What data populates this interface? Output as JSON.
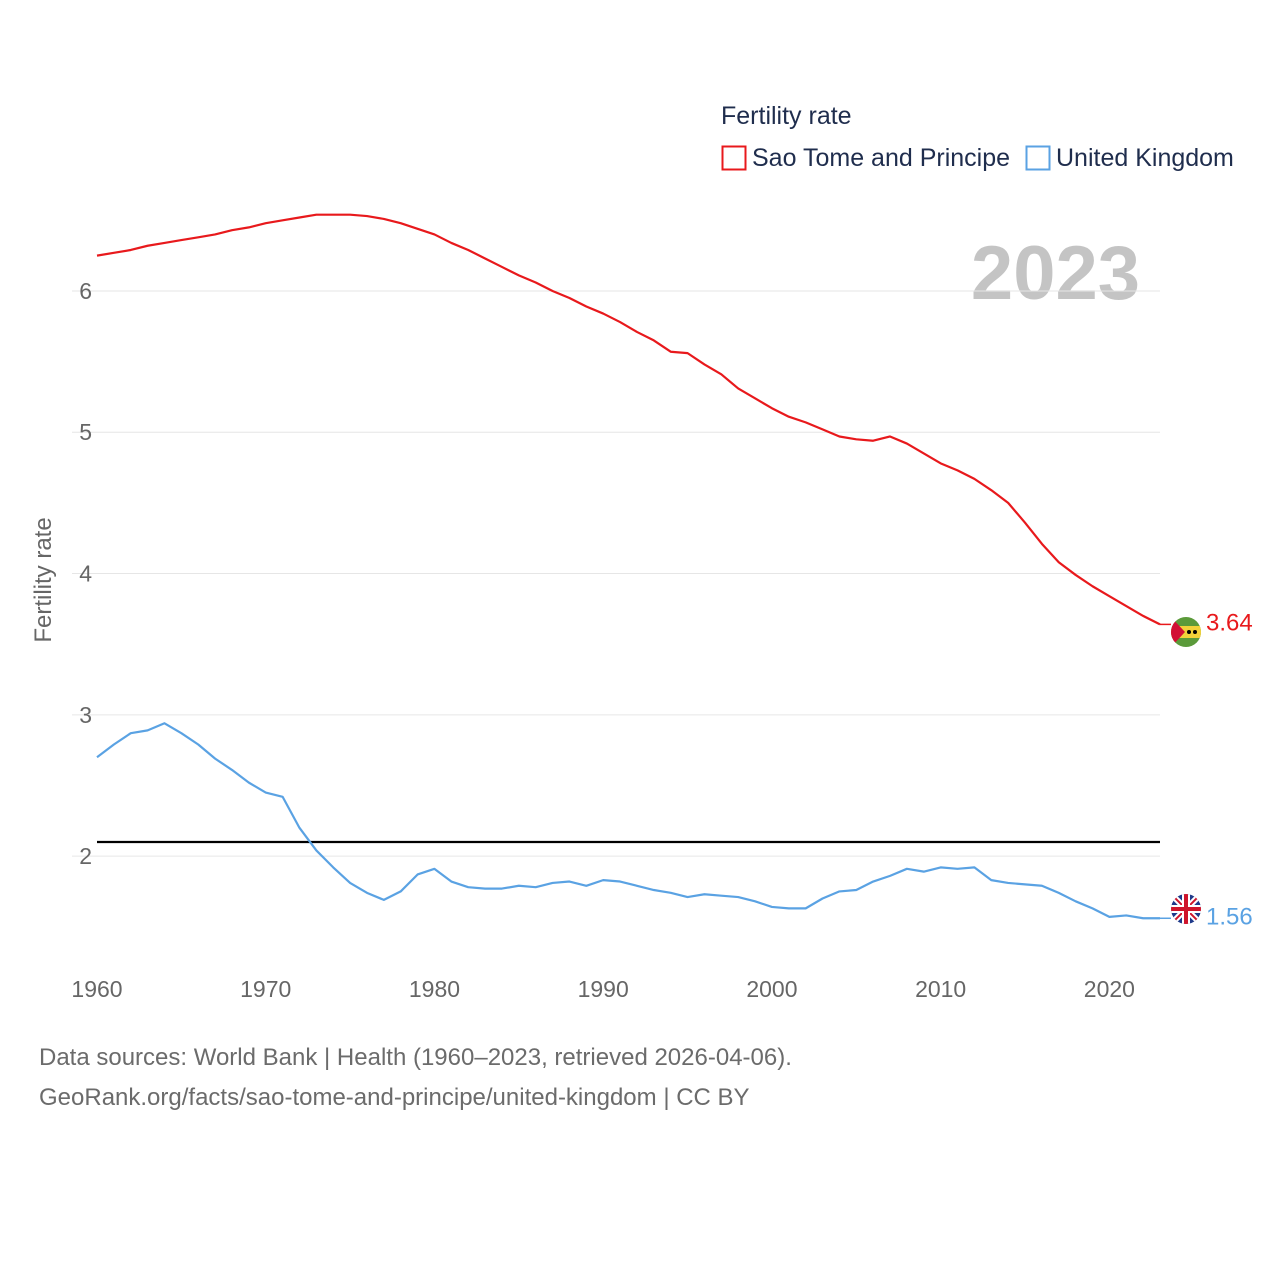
{
  "legend": {
    "title": "Fertility rate",
    "items": [
      {
        "label": "Sao Tome and Principe",
        "color": "#e8191c"
      },
      {
        "label": "United Kingdom",
        "color": "#5aa2e3"
      }
    ]
  },
  "year_label": "2023",
  "footer": {
    "line1": "Data sources: World Bank | Health (1960–2023, retrieved 2026-04-06).",
    "line2": "GeoRank.org/facts/sao-tome-and-principe/united-kingdom | CC BY"
  },
  "chart_data": {
    "type": "line",
    "title": "Fertility rate",
    "xlabel": "",
    "ylabel": "Fertility rate",
    "xlim": [
      1960,
      2023
    ],
    "ylim": [
      1.3,
      6.75
    ],
    "x_ticks": [
      1960,
      1970,
      1980,
      1990,
      2000,
      2010,
      2020
    ],
    "y_ticks": [
      2,
      3,
      4,
      5,
      6
    ],
    "grid": true,
    "reference_line": {
      "y": 2.1,
      "color": "#000000"
    },
    "x": [
      1960,
      1961,
      1962,
      1963,
      1964,
      1965,
      1966,
      1967,
      1968,
      1969,
      1970,
      1971,
      1972,
      1973,
      1974,
      1975,
      1976,
      1977,
      1978,
      1979,
      1980,
      1981,
      1982,
      1983,
      1984,
      1985,
      1986,
      1987,
      1988,
      1989,
      1990,
      1991,
      1992,
      1993,
      1994,
      1995,
      1996,
      1997,
      1998,
      1999,
      2000,
      2001,
      2002,
      2003,
      2004,
      2005,
      2006,
      2007,
      2008,
      2009,
      2010,
      2011,
      2012,
      2013,
      2014,
      2015,
      2016,
      2017,
      2018,
      2019,
      2020,
      2021,
      2022,
      2023
    ],
    "series": [
      {
        "name": "Sao Tome and Principe",
        "color": "#e8191c",
        "end_label": "3.64",
        "values": [
          6.25,
          6.27,
          6.29,
          6.32,
          6.34,
          6.36,
          6.38,
          6.4,
          6.43,
          6.45,
          6.48,
          6.5,
          6.52,
          6.54,
          6.54,
          6.54,
          6.53,
          6.51,
          6.48,
          6.44,
          6.4,
          6.34,
          6.29,
          6.23,
          6.17,
          6.11,
          6.06,
          6.0,
          5.95,
          5.89,
          5.84,
          5.78,
          5.71,
          5.65,
          5.57,
          5.56,
          5.48,
          5.41,
          5.31,
          5.24,
          5.17,
          5.11,
          5.07,
          5.02,
          4.97,
          4.95,
          4.94,
          4.97,
          4.92,
          4.85,
          4.78,
          4.73,
          4.67,
          4.59,
          4.5,
          4.36,
          4.21,
          4.08,
          3.99,
          3.91,
          3.84,
          3.77,
          3.7,
          3.64
        ]
      },
      {
        "name": "United Kingdom",
        "color": "#5aa2e3",
        "end_label": "1.56",
        "values": [
          2.7,
          2.79,
          2.87,
          2.89,
          2.94,
          2.87,
          2.79,
          2.69,
          2.61,
          2.52,
          2.45,
          2.42,
          2.2,
          2.04,
          1.92,
          1.81,
          1.74,
          1.69,
          1.75,
          1.87,
          1.91,
          1.82,
          1.78,
          1.77,
          1.77,
          1.79,
          1.78,
          1.81,
          1.82,
          1.79,
          1.83,
          1.82,
          1.79,
          1.76,
          1.74,
          1.71,
          1.73,
          1.72,
          1.71,
          1.68,
          1.64,
          1.63,
          1.63,
          1.7,
          1.75,
          1.76,
          1.82,
          1.86,
          1.91,
          1.89,
          1.92,
          1.91,
          1.92,
          1.83,
          1.81,
          1.8,
          1.79,
          1.74,
          1.68,
          1.63,
          1.57,
          1.58,
          1.56,
          1.56
        ]
      }
    ]
  }
}
